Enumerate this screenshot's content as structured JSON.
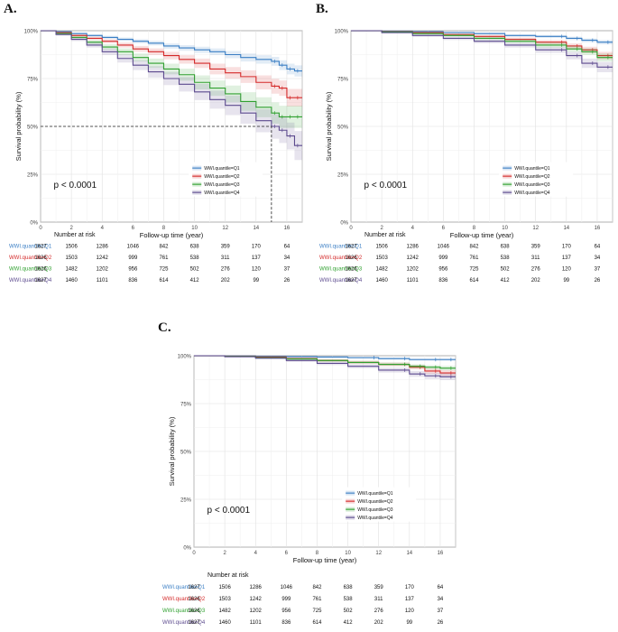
{
  "figure": {
    "panel_labels": [
      "A.",
      "B.",
      "C."
    ]
  },
  "chart_data": [
    {
      "panel": "A.",
      "type": "line",
      "step": true,
      "xlabel": "Follow-up time (year)",
      "ylabel": "Survival probability (%)",
      "xlim": [
        0,
        17
      ],
      "ylim": [
        0,
        1
      ],
      "xticks": [
        0,
        2,
        4,
        6,
        8,
        10,
        12,
        14,
        16
      ],
      "yticks": [
        "0%",
        "25%",
        "50%",
        "75%",
        "100%"
      ],
      "grid": true,
      "pvalue": "p < 0.0001",
      "legend_position": "center-right",
      "median_line": {
        "x": 15,
        "y": 0.5
      },
      "series": [
        {
          "name": "WWI.quantile=Q1",
          "color": "#3A7EC4",
          "x": [
            0,
            1,
            2,
            3,
            4,
            5,
            6,
            7,
            8,
            9,
            10,
            11,
            12,
            13,
            14,
            15,
            15.5,
            16,
            16.5,
            17
          ],
          "y": [
            1,
            0.995,
            0.985,
            0.975,
            0.965,
            0.955,
            0.945,
            0.935,
            0.92,
            0.91,
            0.9,
            0.89,
            0.875,
            0.86,
            0.85,
            0.84,
            0.82,
            0.8,
            0.79,
            0.79
          ]
        },
        {
          "name": "WWI.quantile=Q2",
          "color": "#D42A2A",
          "x": [
            0,
            1,
            2,
            3,
            4,
            5,
            6,
            7,
            8,
            9,
            10,
            11,
            12,
            13,
            14,
            15,
            15.5,
            16,
            16.5,
            17
          ],
          "y": [
            1,
            0.99,
            0.975,
            0.96,
            0.945,
            0.925,
            0.905,
            0.89,
            0.87,
            0.85,
            0.83,
            0.8,
            0.78,
            0.76,
            0.73,
            0.71,
            0.7,
            0.65,
            0.65,
            0.65
          ]
        },
        {
          "name": "WWI.quantile=Q3",
          "color": "#2FA02F",
          "x": [
            0,
            1,
            2,
            3,
            4,
            5,
            6,
            7,
            8,
            9,
            10,
            11,
            12,
            13,
            14,
            15,
            15.5,
            16,
            16.5,
            17
          ],
          "y": [
            1,
            0.985,
            0.965,
            0.94,
            0.915,
            0.89,
            0.86,
            0.83,
            0.8,
            0.77,
            0.73,
            0.7,
            0.67,
            0.63,
            0.6,
            0.57,
            0.55,
            0.55,
            0.55,
            0.55
          ]
        },
        {
          "name": "WWI.quantile=Q4",
          "color": "#5C4A8E",
          "x": [
            0,
            1,
            2,
            3,
            4,
            5,
            6,
            7,
            8,
            9,
            10,
            11,
            12,
            13,
            14,
            15,
            15.5,
            16,
            16.5,
            17
          ],
          "y": [
            1,
            0.98,
            0.955,
            0.925,
            0.89,
            0.855,
            0.82,
            0.785,
            0.75,
            0.72,
            0.68,
            0.64,
            0.61,
            0.57,
            0.53,
            0.5,
            0.48,
            0.45,
            0.4,
            0.4
          ]
        }
      ],
      "risk_table": {
        "title": "Number at risk",
        "times": [
          0,
          2,
          4,
          6,
          8,
          10,
          12,
          14,
          16
        ],
        "rows": [
          {
            "label": "WWI.quantile=Q1",
            "color": "#3A7EC4",
            "values": [
              "1627",
              "1506",
              "1286",
              "1046",
              "842",
              "638",
              "359",
              "170",
              "64"
            ]
          },
          {
            "label": "WWI.quantile=Q2",
            "color": "#D42A2A",
            "values": [
              "1626",
              "1503",
              "1242",
              "999",
              "761",
              "538",
              "311",
              "137",
              "34"
            ]
          },
          {
            "label": "WWI.quantile=Q3",
            "color": "#2FA02F",
            "values": [
              "1626",
              "1482",
              "1202",
              "956",
              "725",
              "502",
              "276",
              "120",
              "37"
            ]
          },
          {
            "label": "WWI.quantile=Q4",
            "color": "#5C4A8E",
            "values": [
              "1627",
              "1460",
              "1101",
              "836",
              "614",
              "412",
              "202",
              "99",
              "26"
            ]
          }
        ]
      }
    },
    {
      "panel": "B.",
      "type": "line",
      "step": true,
      "xlabel": "Follow-up time (year)",
      "ylabel": "Survival probability (%)",
      "xlim": [
        0,
        17
      ],
      "ylim": [
        0,
        1
      ],
      "xticks": [
        0,
        2,
        4,
        6,
        8,
        10,
        12,
        14,
        16
      ],
      "yticks": [
        "0%",
        "25%",
        "50%",
        "75%",
        "100%"
      ],
      "grid": true,
      "pvalue": "p < 0.0001",
      "legend_position": "center-right",
      "series": [
        {
          "name": "WWI.quantile=Q1",
          "color": "#3A7EC4",
          "x": [
            0,
            2,
            4,
            6,
            8,
            10,
            12,
            14,
            15,
            16,
            17
          ],
          "y": [
            1,
            0.998,
            0.995,
            0.99,
            0.985,
            0.975,
            0.97,
            0.96,
            0.95,
            0.94,
            0.94
          ]
        },
        {
          "name": "WWI.quantile=Q2",
          "color": "#D42A2A",
          "x": [
            0,
            2,
            4,
            6,
            8,
            10,
            12,
            14,
            15,
            16,
            17
          ],
          "y": [
            1,
            0.995,
            0.99,
            0.98,
            0.97,
            0.955,
            0.94,
            0.92,
            0.9,
            0.87,
            0.87
          ]
        },
        {
          "name": "WWI.quantile=Q3",
          "color": "#2FA02F",
          "x": [
            0,
            2,
            4,
            6,
            8,
            10,
            12,
            14,
            15,
            16,
            17
          ],
          "y": [
            1,
            0.993,
            0.985,
            0.975,
            0.96,
            0.945,
            0.925,
            0.905,
            0.89,
            0.86,
            0.86
          ]
        },
        {
          "name": "WWI.quantile=Q4",
          "color": "#5C4A8E",
          "x": [
            0,
            2,
            4,
            6,
            8,
            10,
            12,
            14,
            15,
            16,
            17
          ],
          "y": [
            1,
            0.99,
            0.975,
            0.96,
            0.945,
            0.925,
            0.9,
            0.87,
            0.83,
            0.81,
            0.81
          ]
        }
      ],
      "risk_table": {
        "title": "Number at risk",
        "times": [
          0,
          2,
          4,
          6,
          8,
          10,
          12,
          14,
          16
        ],
        "rows": [
          {
            "label": "WWI.quantile=Q1",
            "color": "#3A7EC4",
            "values": [
              "1627",
              "1506",
              "1286",
              "1046",
              "842",
              "638",
              "359",
              "170",
              "64"
            ]
          },
          {
            "label": "WWI.quantile=Q2",
            "color": "#D42A2A",
            "values": [
              "1626",
              "1503",
              "1242",
              "999",
              "761",
              "538",
              "311",
              "137",
              "34"
            ]
          },
          {
            "label": "WWI.quantile=Q3",
            "color": "#2FA02F",
            "values": [
              "1626",
              "1482",
              "1202",
              "956",
              "725",
              "502",
              "276",
              "120",
              "37"
            ]
          },
          {
            "label": "WWI.quantile=Q4",
            "color": "#5C4A8E",
            "values": [
              "1627",
              "1460",
              "1101",
              "836",
              "614",
              "412",
              "202",
              "99",
              "26"
            ]
          }
        ]
      }
    },
    {
      "panel": "C.",
      "type": "line",
      "step": true,
      "xlabel": "Follow-up time (year)",
      "ylabel": "Survival probability (%)",
      "xlim": [
        0,
        17
      ],
      "ylim": [
        0,
        1
      ],
      "xticks": [
        0,
        2,
        4,
        6,
        8,
        10,
        12,
        14,
        16
      ],
      "yticks": [
        "0%",
        "25%",
        "50%",
        "75%",
        "100%"
      ],
      "grid": true,
      "pvalue": "p < 0.0001",
      "legend_position": "center-right",
      "series": [
        {
          "name": "WWI.quantile=Q1",
          "color": "#3A7EC4",
          "x": [
            0,
            2,
            4,
            6,
            8,
            10,
            12,
            14,
            16,
            17
          ],
          "y": [
            1,
            0.999,
            0.997,
            0.995,
            0.993,
            0.99,
            0.985,
            0.98,
            0.98,
            0.98
          ]
        },
        {
          "name": "WWI.quantile=Q2",
          "color": "#D42A2A",
          "x": [
            0,
            2,
            4,
            6,
            8,
            10,
            12,
            14,
            15,
            16,
            17
          ],
          "y": [
            1,
            0.998,
            0.993,
            0.985,
            0.975,
            0.965,
            0.955,
            0.94,
            0.92,
            0.91,
            0.91
          ]
        },
        {
          "name": "WWI.quantile=Q3",
          "color": "#2FA02F",
          "x": [
            0,
            2,
            4,
            6,
            8,
            10,
            12,
            14,
            15,
            16,
            17
          ],
          "y": [
            1,
            0.997,
            0.99,
            0.983,
            0.975,
            0.965,
            0.955,
            0.945,
            0.94,
            0.935,
            0.935
          ]
        },
        {
          "name": "WWI.quantile=Q4",
          "color": "#5C4A8E",
          "x": [
            0,
            2,
            4,
            6,
            8,
            10,
            12,
            14,
            15,
            16,
            17
          ],
          "y": [
            1,
            0.995,
            0.987,
            0.975,
            0.96,
            0.945,
            0.925,
            0.905,
            0.895,
            0.89,
            0.89
          ]
        }
      ],
      "risk_table": {
        "title": "Number at risk",
        "times": [
          0,
          2,
          4,
          6,
          8,
          10,
          12,
          14,
          16
        ],
        "rows": [
          {
            "label": "WWI.quantile=Q1",
            "color": "#3A7EC4",
            "values": [
              "1627",
              "1506",
              "1286",
              "1046",
              "842",
              "638",
              "359",
              "170",
              "64"
            ]
          },
          {
            "label": "WWI.quantile=Q2",
            "color": "#D42A2A",
            "values": [
              "1626",
              "1503",
              "1242",
              "999",
              "761",
              "538",
              "311",
              "137",
              "34"
            ]
          },
          {
            "label": "WWI.quantile=Q3",
            "color": "#2FA02F",
            "values": [
              "1626",
              "1482",
              "1202",
              "956",
              "725",
              "502",
              "276",
              "120",
              "37"
            ]
          },
          {
            "label": "WWI.quantile=Q4",
            "color": "#5C4A8E",
            "values": [
              "1627",
              "1460",
              "1101",
              "836",
              "614",
              "412",
              "202",
              "99",
              "26"
            ]
          }
        ]
      }
    }
  ]
}
